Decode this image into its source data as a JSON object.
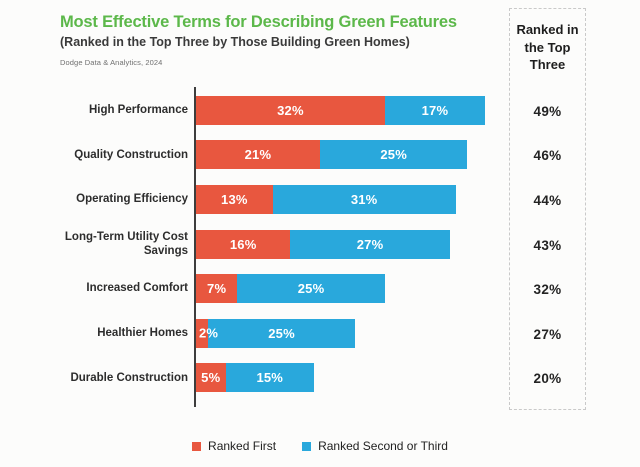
{
  "header": {
    "title": "Most Effective Terms for Describing Green Features",
    "subtitle": "(Ranked in the Top Three by Those Building Green Homes)",
    "source": "Dodge Data & Analytics, 2024"
  },
  "panel": {
    "heading": "Ranked in the Top Three"
  },
  "legend": [
    {
      "label": "Ranked First",
      "color": "#e8573f"
    },
    {
      "label": "Ranked Second or Third",
      "color": "#29a8dc"
    }
  ],
  "colors": {
    "ranked_first": "#e8573f",
    "ranked_second_or_third": "#29a8dc",
    "title_green": "#5cb84a",
    "axis": "#3d3d3d",
    "panel_border": "#c9c9c9"
  },
  "chart_data": {
    "type": "bar",
    "orientation": "horizontal",
    "stacked": true,
    "title": "Most Effective Terms for Describing Green Features",
    "subtitle": "(Ranked in the Top Three by Those Building Green Homes)",
    "unit": "%",
    "xlim": [
      0,
      50
    ],
    "grid": false,
    "legend_position": "bottom",
    "categories": [
      "High Performance",
      "Quality Construction",
      "Operating Efficiency",
      "Long-Term Utility Cost Savings",
      "Increased Comfort",
      "Healthier Homes",
      "Durable Construction"
    ],
    "series": [
      {
        "name": "Ranked First",
        "values": [
          32,
          21,
          13,
          16,
          7,
          2,
          5
        ]
      },
      {
        "name": "Ranked Second or Third",
        "values": [
          17,
          25,
          31,
          27,
          25,
          25,
          15
        ]
      }
    ],
    "totals": [
      49,
      46,
      44,
      43,
      32,
      27,
      20
    ],
    "value_labels": {
      "ranked_first": [
        "32%",
        "21%",
        "13%",
        "16%",
        "7%",
        "2%",
        "5%"
      ],
      "ranked_second_or_third": [
        "17%",
        "25%",
        "31%",
        "27%",
        "25%",
        "25%",
        "15%"
      ],
      "totals": [
        "49%",
        "46%",
        "44%",
        "43%",
        "32%",
        "27%",
        "20%"
      ]
    }
  }
}
